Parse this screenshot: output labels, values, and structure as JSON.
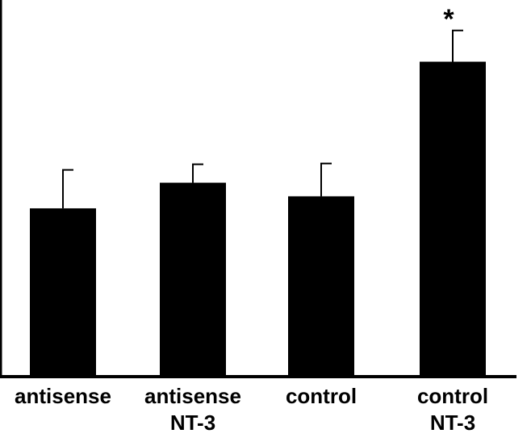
{
  "chart_data": {
    "type": "bar",
    "title": "",
    "xlabel": "",
    "ylabel": "",
    "ylim": [
      0,
      470
    ],
    "grid": false,
    "categories": [
      {
        "line1": "antisense",
        "line2": ""
      },
      {
        "line1": "antisense",
        "line2": "NT-3"
      },
      {
        "line1": "control",
        "line2": ""
      },
      {
        "line1": "control",
        "line2": "NT-3"
      }
    ],
    "values": [
      210,
      242,
      225,
      393
    ],
    "errors": [
      48,
      23,
      41,
      39
    ],
    "annotations": [
      "",
      "",
      "",
      "*"
    ],
    "bar_color": "#000000"
  }
}
